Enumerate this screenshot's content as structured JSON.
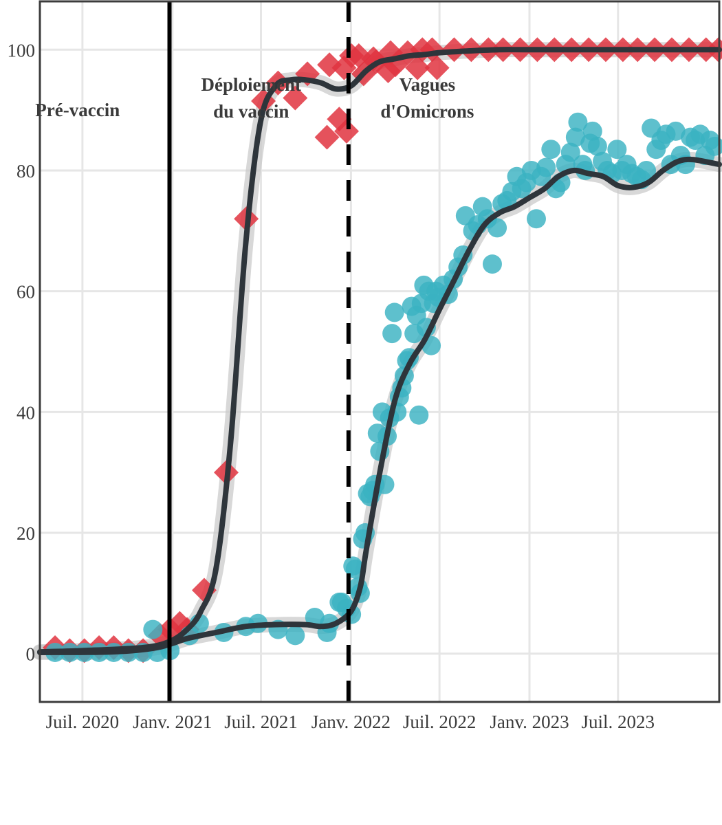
{
  "chart_data": {
    "type": "scatter",
    "title": "",
    "xlabel": "",
    "ylabel": "",
    "ylim": [
      -8,
      108
    ],
    "xlim": [
      "2020-04-05",
      "2024-01-24"
    ],
    "grid": true,
    "legend": "none",
    "x_ticks": [
      {
        "date": "2020-07-01",
        "label": "Juil. 2020"
      },
      {
        "date": "2021-01-01",
        "label": "Janv. 2021"
      },
      {
        "date": "2021-07-01",
        "label": "Juil. 2021"
      },
      {
        "date": "2022-01-01",
        "label": "Janv. 2022"
      },
      {
        "date": "2022-07-01",
        "label": "Juil. 2022"
      },
      {
        "date": "2023-01-01",
        "label": "Janv. 2023"
      },
      {
        "date": "2023-07-01",
        "label": "Juil. 2023"
      }
    ],
    "y_ticks": [
      0,
      20,
      40,
      60,
      80,
      100
    ],
    "reference_lines": [
      {
        "date": "2020-12-26",
        "style": "solid",
        "color": "#000000"
      },
      {
        "date": "2021-12-27",
        "style": "dashed",
        "color": "#000000"
      }
    ],
    "annotations": [
      {
        "lines": [
          "Pré-vaccin"
        ],
        "date": "2020-06-21",
        "y": 90
      },
      {
        "lines": [
          "Déploiement",
          "du vaccin"
        ],
        "date": "2021-06-11",
        "y": 92
      },
      {
        "lines": [
          "Vagues",
          "d'Omicrons"
        ],
        "date": "2022-06-06",
        "y": 92
      }
    ],
    "series": [
      {
        "marker": "diamond",
        "color": "#e03440",
        "points": [
          [
            "2020-05-06",
            1
          ],
          [
            "2020-06-05",
            0.5
          ],
          [
            "2020-07-05",
            0.5
          ],
          [
            "2020-08-04",
            1
          ],
          [
            "2020-09-03",
            1
          ],
          [
            "2020-10-03",
            0.5
          ],
          [
            "2020-11-02",
            0.5
          ],
          [
            "2020-12-07",
            3
          ],
          [
            "2020-12-27",
            4
          ],
          [
            "2021-01-16",
            5
          ],
          [
            "2021-01-31",
            4
          ],
          [
            "2021-03-07",
            10.5
          ],
          [
            "2021-04-21",
            30
          ],
          [
            "2021-06-01",
            72
          ],
          [
            "2021-07-06",
            91.5
          ],
          [
            "2021-08-05",
            94.5
          ],
          [
            "2021-09-09",
            92
          ],
          [
            "2021-10-04",
            96
          ],
          [
            "2021-11-13",
            85.5
          ],
          [
            "2021-11-18",
            97.5
          ],
          [
            "2021-12-08",
            88.5
          ],
          [
            "2021-12-23",
            86.5
          ],
          [
            "2021-12-18",
            97
          ],
          [
            "2022-01-02",
            99
          ],
          [
            "2022-01-17",
            99
          ],
          [
            "2022-01-27",
            96
          ],
          [
            "2022-02-16",
            98.5
          ],
          [
            "2022-02-21",
            98
          ],
          [
            "2022-03-18",
            96.5
          ],
          [
            "2022-03-23",
            99.5
          ],
          [
            "2022-04-02",
            97.5
          ],
          [
            "2022-04-27",
            99.5
          ],
          [
            "2022-05-17",
            97
          ],
          [
            "2022-05-27",
            100
          ],
          [
            "2022-06-16",
            100
          ],
          [
            "2022-06-26",
            97
          ],
          [
            "2022-07-31",
            100
          ],
          [
            "2022-09-04",
            100
          ],
          [
            "2022-10-09",
            100
          ],
          [
            "2022-11-08",
            100
          ],
          [
            "2022-12-13",
            100
          ],
          [
            "2023-01-17",
            100
          ],
          [
            "2023-02-21",
            100
          ],
          [
            "2023-03-28",
            100
          ],
          [
            "2023-05-02",
            100
          ],
          [
            "2023-06-06",
            100
          ],
          [
            "2023-07-11",
            100
          ],
          [
            "2023-08-10",
            100
          ],
          [
            "2023-09-14",
            100
          ],
          [
            "2023-10-19",
            100
          ],
          [
            "2023-11-23",
            100
          ],
          [
            "2023-12-28",
            100
          ],
          [
            "2024-01-22",
            100
          ]
        ],
        "trend": [
          [
            "2020-04-05",
            0.3
          ],
          [
            "2020-07-01",
            0.5
          ],
          [
            "2020-11-01",
            1
          ],
          [
            "2020-12-26",
            2
          ],
          [
            "2021-01-31",
            4
          ],
          [
            "2021-02-28",
            7
          ],
          [
            "2021-03-31",
            14
          ],
          [
            "2021-04-30",
            35
          ],
          [
            "2021-05-31",
            68
          ],
          [
            "2021-06-30",
            88
          ],
          [
            "2021-07-31",
            94
          ],
          [
            "2021-08-31",
            95
          ],
          [
            "2021-09-30",
            95
          ],
          [
            "2021-11-01",
            94.5
          ],
          [
            "2021-12-01",
            93.5
          ],
          [
            "2022-01-01",
            94
          ],
          [
            "2022-02-01",
            96.5
          ],
          [
            "2022-03-01",
            98
          ],
          [
            "2022-04-01",
            98.5
          ],
          [
            "2022-05-01",
            99
          ],
          [
            "2022-06-01",
            99.2
          ],
          [
            "2022-07-01",
            99.5
          ],
          [
            "2022-09-01",
            99.8
          ],
          [
            "2022-11-01",
            100
          ],
          [
            "2023-01-01",
            100
          ],
          [
            "2023-07-01",
            100
          ],
          [
            "2024-01-24",
            100
          ]
        ]
      },
      {
        "marker": "circle",
        "color": "#3ab2c2",
        "points": [
          [
            "2020-05-06",
            0.2
          ],
          [
            "2020-06-05",
            0.2
          ],
          [
            "2020-07-05",
            0.2
          ],
          [
            "2020-08-04",
            0.2
          ],
          [
            "2020-09-03",
            0.2
          ],
          [
            "2020-10-03",
            0.2
          ],
          [
            "2020-11-02",
            0.2
          ],
          [
            "2020-12-01",
            0.2
          ],
          [
            "2020-11-22",
            4
          ],
          [
            "2020-12-27",
            0.5
          ],
          [
            "2021-02-05",
            3
          ],
          [
            "2021-02-25",
            5
          ],
          [
            "2021-04-16",
            3.5
          ],
          [
            "2021-05-31",
            4.5
          ],
          [
            "2021-06-25",
            5
          ],
          [
            "2021-08-05",
            4
          ],
          [
            "2021-09-09",
            3
          ],
          [
            "2021-10-19",
            6
          ],
          [
            "2021-11-13",
            3.5
          ],
          [
            "2021-11-18",
            5
          ],
          [
            "2021-12-08",
            8.5
          ],
          [
            "2021-12-13",
            8.5
          ],
          [
            "2021-12-23",
            7.5
          ],
          [
            "2022-01-02",
            6.5
          ],
          [
            "2022-01-05",
            14.5
          ],
          [
            "2022-01-10",
            14
          ],
          [
            "2022-01-15",
            11
          ],
          [
            "2022-01-20",
            10
          ],
          [
            "2022-01-25",
            19
          ],
          [
            "2022-01-30",
            20
          ],
          [
            "2022-02-04",
            26.5
          ],
          [
            "2022-02-09",
            26
          ],
          [
            "2022-02-14",
            27
          ],
          [
            "2022-02-19",
            28
          ],
          [
            "2022-02-24",
            36.5
          ],
          [
            "2022-03-01",
            33.5
          ],
          [
            "2022-03-06",
            40
          ],
          [
            "2022-03-11",
            28
          ],
          [
            "2022-03-16",
            36
          ],
          [
            "2022-03-21",
            39
          ],
          [
            "2022-03-26",
            53
          ],
          [
            "2022-03-31",
            56.5
          ],
          [
            "2022-04-05",
            40
          ],
          [
            "2022-04-10",
            42.5
          ],
          [
            "2022-04-15",
            44
          ],
          [
            "2022-04-20",
            46
          ],
          [
            "2022-04-25",
            48.5
          ],
          [
            "2022-04-30",
            49
          ],
          [
            "2022-05-05",
            57.5
          ],
          [
            "2022-05-10",
            53
          ],
          [
            "2022-05-15",
            56
          ],
          [
            "2022-05-20",
            39.5
          ],
          [
            "2022-05-25",
            58
          ],
          [
            "2022-05-30",
            61
          ],
          [
            "2022-06-04",
            54
          ],
          [
            "2022-06-09",
            60
          ],
          [
            "2022-06-14",
            51
          ],
          [
            "2022-06-19",
            58
          ],
          [
            "2022-06-24",
            60
          ],
          [
            "2022-06-29",
            59
          ],
          [
            "2022-07-09",
            61
          ],
          [
            "2022-07-19",
            59.5
          ],
          [
            "2022-07-29",
            62
          ],
          [
            "2022-08-08",
            64
          ],
          [
            "2022-08-18",
            66
          ],
          [
            "2022-08-23",
            72.5
          ],
          [
            "2022-09-07",
            70
          ],
          [
            "2022-09-17",
            71
          ],
          [
            "2022-09-27",
            74
          ],
          [
            "2022-10-07",
            72
          ],
          [
            "2022-10-17",
            64.5
          ],
          [
            "2022-10-27",
            70.5
          ],
          [
            "2022-11-06",
            74.5
          ],
          [
            "2022-11-16",
            75
          ],
          [
            "2022-11-26",
            76.5
          ],
          [
            "2022-12-06",
            79
          ],
          [
            "2022-12-16",
            77
          ],
          [
            "2022-12-26",
            78
          ],
          [
            "2023-01-05",
            80
          ],
          [
            "2023-01-15",
            72
          ],
          [
            "2023-01-25",
            79
          ],
          [
            "2023-02-04",
            80.5
          ],
          [
            "2023-02-14",
            83.5
          ],
          [
            "2023-02-24",
            77
          ],
          [
            "2023-03-06",
            78
          ],
          [
            "2023-03-16",
            81
          ],
          [
            "2023-03-26",
            83
          ],
          [
            "2023-04-05",
            85.5
          ],
          [
            "2023-04-10",
            88
          ],
          [
            "2023-04-20",
            81
          ],
          [
            "2023-04-25",
            80
          ],
          [
            "2023-05-05",
            84.5
          ],
          [
            "2023-05-10",
            86.5
          ],
          [
            "2023-05-20",
            84
          ],
          [
            "2023-05-30",
            81.5
          ],
          [
            "2023-06-09",
            80
          ],
          [
            "2023-06-19",
            79.5
          ],
          [
            "2023-06-29",
            83.5
          ],
          [
            "2023-07-09",
            80
          ],
          [
            "2023-07-19",
            81
          ],
          [
            "2023-07-29",
            79.5
          ],
          [
            "2023-08-08",
            79
          ],
          [
            "2023-08-18",
            78.5
          ],
          [
            "2023-08-28",
            80
          ],
          [
            "2023-09-07",
            87
          ],
          [
            "2023-09-17",
            83.5
          ],
          [
            "2023-09-27",
            85
          ],
          [
            "2023-10-07",
            86
          ],
          [
            "2023-10-17",
            81
          ],
          [
            "2023-10-27",
            86.5
          ],
          [
            "2023-11-06",
            82.5
          ],
          [
            "2023-11-16",
            81
          ],
          [
            "2023-11-26",
            85.5
          ],
          [
            "2023-12-06",
            85
          ],
          [
            "2023-12-16",
            86
          ],
          [
            "2023-12-26",
            82.5
          ],
          [
            "2024-01-05",
            85
          ],
          [
            "2024-01-15",
            84
          ]
        ],
        "trend": [
          [
            "2020-04-05",
            0.2
          ],
          [
            "2020-09-01",
            0.3
          ],
          [
            "2020-12-01",
            1
          ],
          [
            "2021-01-31",
            2.5
          ],
          [
            "2021-03-31",
            3.5
          ],
          [
            "2021-05-31",
            4.5
          ],
          [
            "2021-07-31",
            4.8
          ],
          [
            "2021-09-30",
            4.8
          ],
          [
            "2021-11-01",
            4.5
          ],
          [
            "2021-12-01",
            5
          ],
          [
            "2022-01-01",
            7
          ],
          [
            "2022-01-20",
            11
          ],
          [
            "2022-02-01",
            17
          ],
          [
            "2022-03-01",
            30
          ],
          [
            "2022-04-01",
            42
          ],
          [
            "2022-05-01",
            48
          ],
          [
            "2022-06-01",
            52
          ],
          [
            "2022-07-01",
            57
          ],
          [
            "2022-08-01",
            62
          ],
          [
            "2022-09-01",
            67
          ],
          [
            "2022-10-01",
            71
          ],
          [
            "2022-11-01",
            73
          ],
          [
            "2022-12-01",
            74
          ],
          [
            "2023-01-01",
            75.5
          ],
          [
            "2023-02-01",
            77
          ],
          [
            "2023-03-01",
            79
          ],
          [
            "2023-04-01",
            80
          ],
          [
            "2023-05-01",
            79.5
          ],
          [
            "2023-06-01",
            79
          ],
          [
            "2023-07-01",
            77.5
          ],
          [
            "2023-08-01",
            77.2
          ],
          [
            "2023-09-01",
            78
          ],
          [
            "2023-10-01",
            80
          ],
          [
            "2023-11-01",
            81.5
          ],
          [
            "2023-12-01",
            81.8
          ],
          [
            "2024-01-24",
            81
          ]
        ]
      }
    ]
  }
}
